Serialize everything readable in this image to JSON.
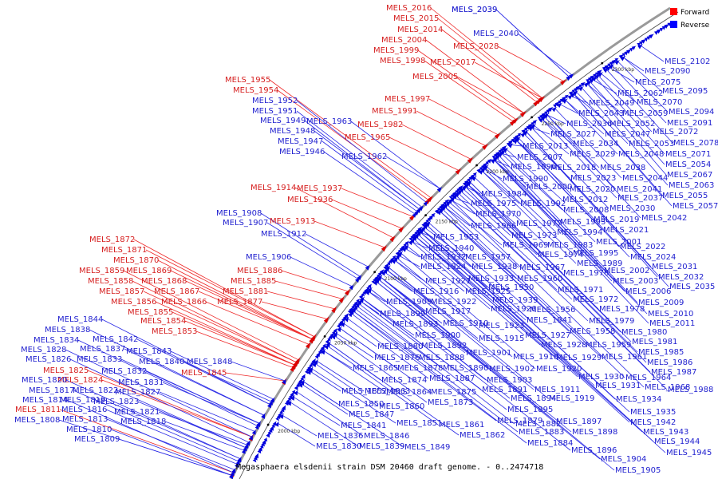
{
  "caption": "Megasphaera elsdenii strain DSM 20460 draft genome. - 0..2474718",
  "legend": {
    "forward_label": "Forward",
    "reverse_label": "Reverse",
    "forward_color": "#ff0000",
    "reverse_color": "#0000ff"
  },
  "kbp_marks": [
    "2000 kbp",
    "2050 kbp",
    "2100 kbp",
    "2150 kbp",
    "2200 kbp",
    "2250 kbp",
    "2300 kbp"
  ],
  "labels_forward": [
    "MELS_2016",
    "MELS_2015",
    "MELS_2014",
    "MELS_2004",
    "MELS_2028",
    "MELS_1999",
    "MELS_2017",
    "MELS_1998",
    "MELS_2005",
    "MELS_1997",
    "MELS_1991",
    "MELS_1955",
    "MELS_1954",
    "MELS_1982",
    "MELS_1965",
    "MELS_1914",
    "MELS_1937",
    "MELS_1936",
    "MELS_1913",
    "MELS_1872",
    "MELS_1871",
    "MELS_1870",
    "MELS_1886",
    "MELS_1859",
    "MELS_1869",
    "MELS_1858",
    "MELS_1868",
    "MELS_1885",
    "MELS_1857",
    "MELS_1867",
    "MELS_1881",
    "MELS_1856",
    "MELS_1866",
    "MELS_1877",
    "MELS_1855",
    "MELS_1854",
    "MELS_1853",
    "MELS_1825",
    "MELS_1845",
    "MELS_1824",
    "MELS_1811"
  ],
  "labels_reverse": [
    "MELS_2039",
    "MELS_2040",
    "MELS_2102",
    "MELS_2090",
    "MELS_2075",
    "MELS_2095",
    "MELS_2062",
    "MELS_2070",
    "MELS_2094",
    "MELS_2049",
    "MELS_2043",
    "MELS_2059",
    "MELS_2091",
    "MELS_2036",
    "MELS_2052",
    "MELS_2072",
    "MELS_2027",
    "MELS_2047",
    "MELS_2078",
    "MELS_2034",
    "MELS_2053",
    "MELS_2013",
    "MELS_2029",
    "MELS_2048",
    "MELS_2071",
    "MELS_2007",
    "MELS_2054",
    "MELS_1996",
    "MELS_2018",
    "MELS_2038",
    "MELS_2067",
    "MELS_1990",
    "MELS_2023",
    "MELS_2044",
    "MELS_2063",
    "MELS_2000",
    "MELS_2020",
    "MELS_2041",
    "MELS_2055",
    "MELS_1984",
    "MELS_2012",
    "MELS_2037",
    "MELS_2057",
    "MELS_1975",
    "MELS_1992",
    "MELS_2008",
    "MELS_2030",
    "MELS_1970",
    "MELS_2019",
    "MELS_2042",
    "MELS_1977",
    "MELS_1993",
    "MELS_2021",
    "MELS_1966",
    "MELS_1994",
    "MELS_1973",
    "MELS_2001",
    "MELS_2022",
    "MELS_1953",
    "MELS_1969",
    "MELS_1983",
    "MELS_1995",
    "MELS_2024",
    "MELS_1940",
    "MELS_1974",
    "MELS_1932",
    "MELS_1957",
    "MELS_1989",
    "MELS_2031",
    "MELS_1924",
    "MELS_1938",
    "MELS_1967",
    "MELS_1976",
    "MELS_2002",
    "MELS_2032",
    "MELS_1933",
    "MELS_1960",
    "MELS_2003",
    "MELS_2035",
    "MELS_1921",
    "MELS_1950",
    "MELS_1971",
    "MELS_2006",
    "MELS_1916",
    "MELS_1925",
    "MELS_1939",
    "MELS_1972",
    "MELS_2009",
    "MELS_1909",
    "MELS_1922",
    "MELS_1926",
    "MELS_1956",
    "MELS_1978",
    "MELS_2010",
    "MELS_1917",
    "MELS_1941",
    "MELS_1979",
    "MELS_2011",
    "MELS_1899",
    "MELS_1910",
    "MELS_1923",
    "MELS_1958",
    "MELS_1980",
    "MELS_1893",
    "MELS_1927",
    "MELS_1900",
    "MELS_1915",
    "MELS_1928",
    "MELS_1959",
    "MELS_1981",
    "MELS_1880",
    "MELS_1892",
    "MELS_1918",
    "MELS_1961",
    "MELS_1985",
    "MELS_1876",
    "MELS_1888",
    "MELS_1901",
    "MELS_1929",
    "MELS_1986",
    "MELS_1878",
    "MELS_1890",
    "MELS_1902",
    "MELS_1920",
    "MELS_1987",
    "MELS_1865",
    "MELS_1874",
    "MELS_1887",
    "MELS_1903",
    "MELS_1930",
    "MELS_1964",
    "MELS_1863",
    "MELS_1891",
    "MELS_1911",
    "MELS_1931",
    "MELS_1968",
    "MELS_1988",
    "MELS_1852",
    "MELS_1864",
    "MELS_1875",
    "MELS_1894",
    "MELS_1919",
    "MELS_1934",
    "MELS_1850",
    "MELS_1860",
    "MELS_1873",
    "MELS_1895",
    "MELS_1935",
    "MELS_1847",
    "MELS_1879",
    "MELS_1882",
    "MELS_1897",
    "MELS_1942",
    "MELS_1841",
    "MELS_1851",
    "MELS_1861",
    "MELS_1883",
    "MELS_1898",
    "MELS_1943",
    "MELS_1836",
    "MELS_1846",
    "MELS_1862",
    "MELS_1884",
    "MELS_1944",
    "MELS_1830",
    "MELS_1839",
    "MELS_1849",
    "MELS_1896",
    "MELS_1945",
    "MELS_1904",
    "MELS_1905",
    "MELS_2039",
    "MELS_1963",
    "MELS_1962",
    "MELS_1952",
    "MELS_1951",
    "MELS_1949",
    "MELS_1948",
    "MELS_1947",
    "MELS_1946",
    "MELS_1908",
    "MELS_1907",
    "MELS_1912",
    "MELS_1906",
    "MELS_1844",
    "MELS_1838",
    "MELS_1842",
    "MELS_1834",
    "MELS_1837",
    "MELS_1828",
    "MELS_1843",
    "MELS_1833",
    "MELS_1826",
    "MELS_1840",
    "MELS_1848",
    "MELS_1832",
    "MELS_1831",
    "MELS_1820",
    "MELS_1827",
    "MELS_1817",
    "MELS_1822",
    "MELS_1823",
    "MELS_1814",
    "MELS_1819",
    "MELS_1816",
    "MELS_1821",
    "MELS_1818",
    "MELS_1813",
    "MELS_1808",
    "MELS_1810",
    "MELS_1809"
  ]
}
